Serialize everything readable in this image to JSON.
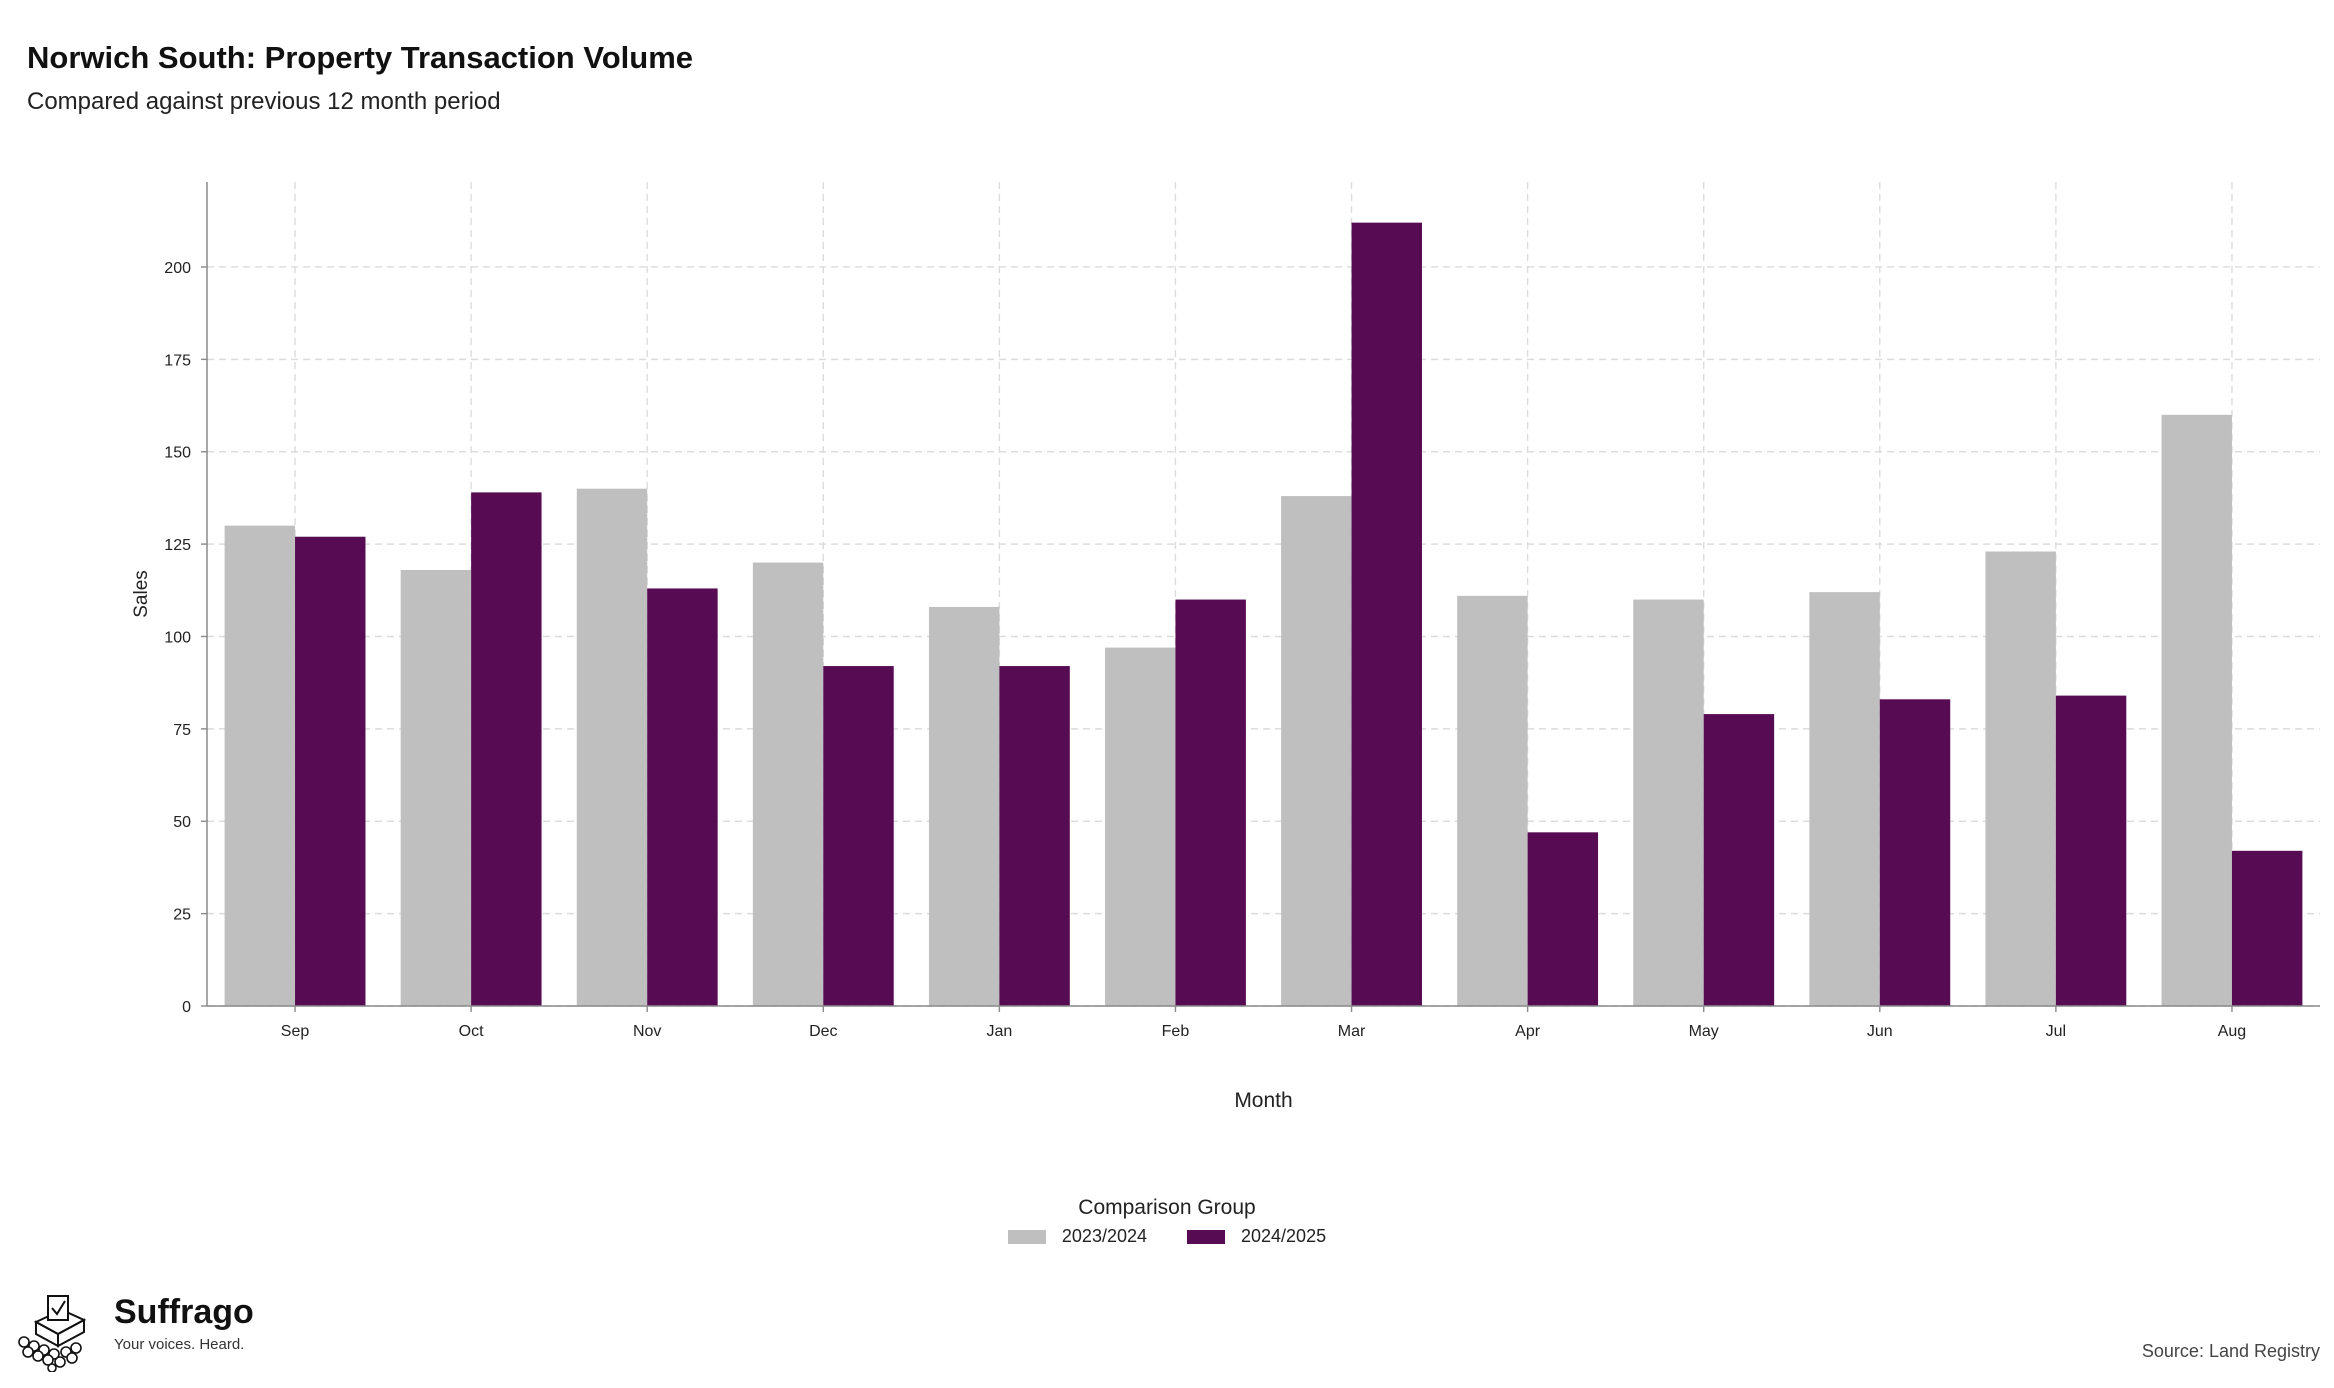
{
  "title": "Norwich South: Property Transaction Volume",
  "subtitle": "Compared against previous 12 month period",
  "source": "Source: Land Registry",
  "brand": {
    "name": "Suffrago",
    "tagline": "Your voices. Heard.",
    "logo_icon": "ballot-box-logo-icon"
  },
  "legend": {
    "title": "Comparison Group"
  },
  "colors": {
    "2023/2024": "#bfbfbf",
    "2024/2025": "#560b52",
    "grid": "#dcdcdc",
    "axis": "#8a8a8a"
  },
  "chart_data": {
    "type": "bar",
    "title": "Norwich South: Property Transaction Volume",
    "subtitle": "Compared against previous 12 month period",
    "xlabel": "Month",
    "ylabel": "Sales",
    "categories": [
      "Sep",
      "Oct",
      "Nov",
      "Dec",
      "Jan",
      "Feb",
      "Mar",
      "Apr",
      "May",
      "Jun",
      "Jul",
      "Aug"
    ],
    "series": [
      {
        "name": "2023/2024",
        "values": [
          130,
          118,
          140,
          120,
          108,
          97,
          138,
          111,
          110,
          112,
          123,
          160
        ]
      },
      {
        "name": "2024/2025",
        "values": [
          127,
          139,
          113,
          92,
          92,
          110,
          212,
          47,
          79,
          83,
          84,
          42
        ]
      }
    ],
    "ylim": [
      0,
      223
    ],
    "yticks": [
      0,
      25,
      50,
      75,
      100,
      125,
      150,
      175,
      200
    ],
    "grid": true,
    "legend_position": "bottom"
  }
}
